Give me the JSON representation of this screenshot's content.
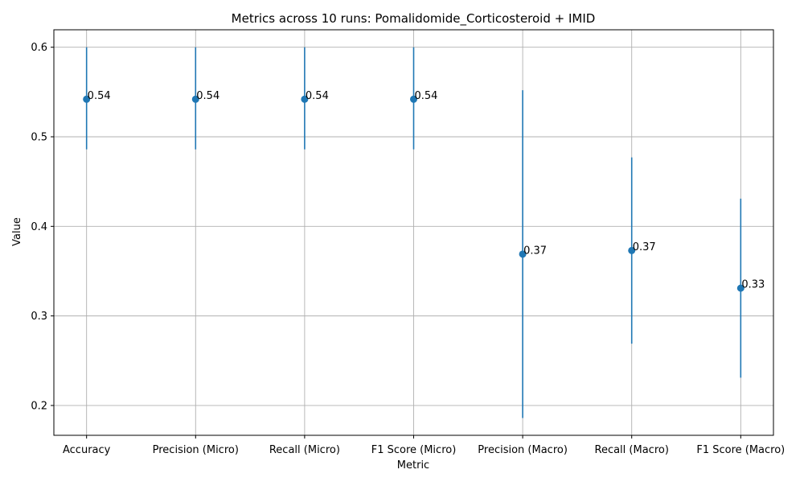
{
  "chart_data": {
    "type": "scatter",
    "title": "Metrics across 10 runs: Pomalidomide_Corticosteroid + IMID",
    "xlabel": "Metric",
    "ylabel": "Value",
    "categories": [
      "Accuracy",
      "Precision (Micro)",
      "Recall (Micro)",
      "F1 Score (Micro)",
      "Precision (Macro)",
      "Recall (Macro)",
      "F1 Score (Macro)"
    ],
    "values": [
      0.542,
      0.542,
      0.542,
      0.542,
      0.369,
      0.373,
      0.331
    ],
    "error_low": [
      0.486,
      0.486,
      0.486,
      0.486,
      0.186,
      0.269,
      0.231
    ],
    "error_high": [
      0.6,
      0.6,
      0.6,
      0.6,
      0.552,
      0.477,
      0.431
    ],
    "data_labels": [
      "0.54",
      "0.54",
      "0.54",
      "0.54",
      "0.37",
      "0.37",
      "0.33"
    ],
    "yticks": [
      "0.2",
      "0.3",
      "0.4",
      "0.5",
      "0.6"
    ],
    "ylim": [
      0.1667,
      0.6195
    ],
    "grid": true,
    "colors": {
      "series": "#1f77b4",
      "grid": "#b0b0b0",
      "axis": "#000000"
    }
  }
}
